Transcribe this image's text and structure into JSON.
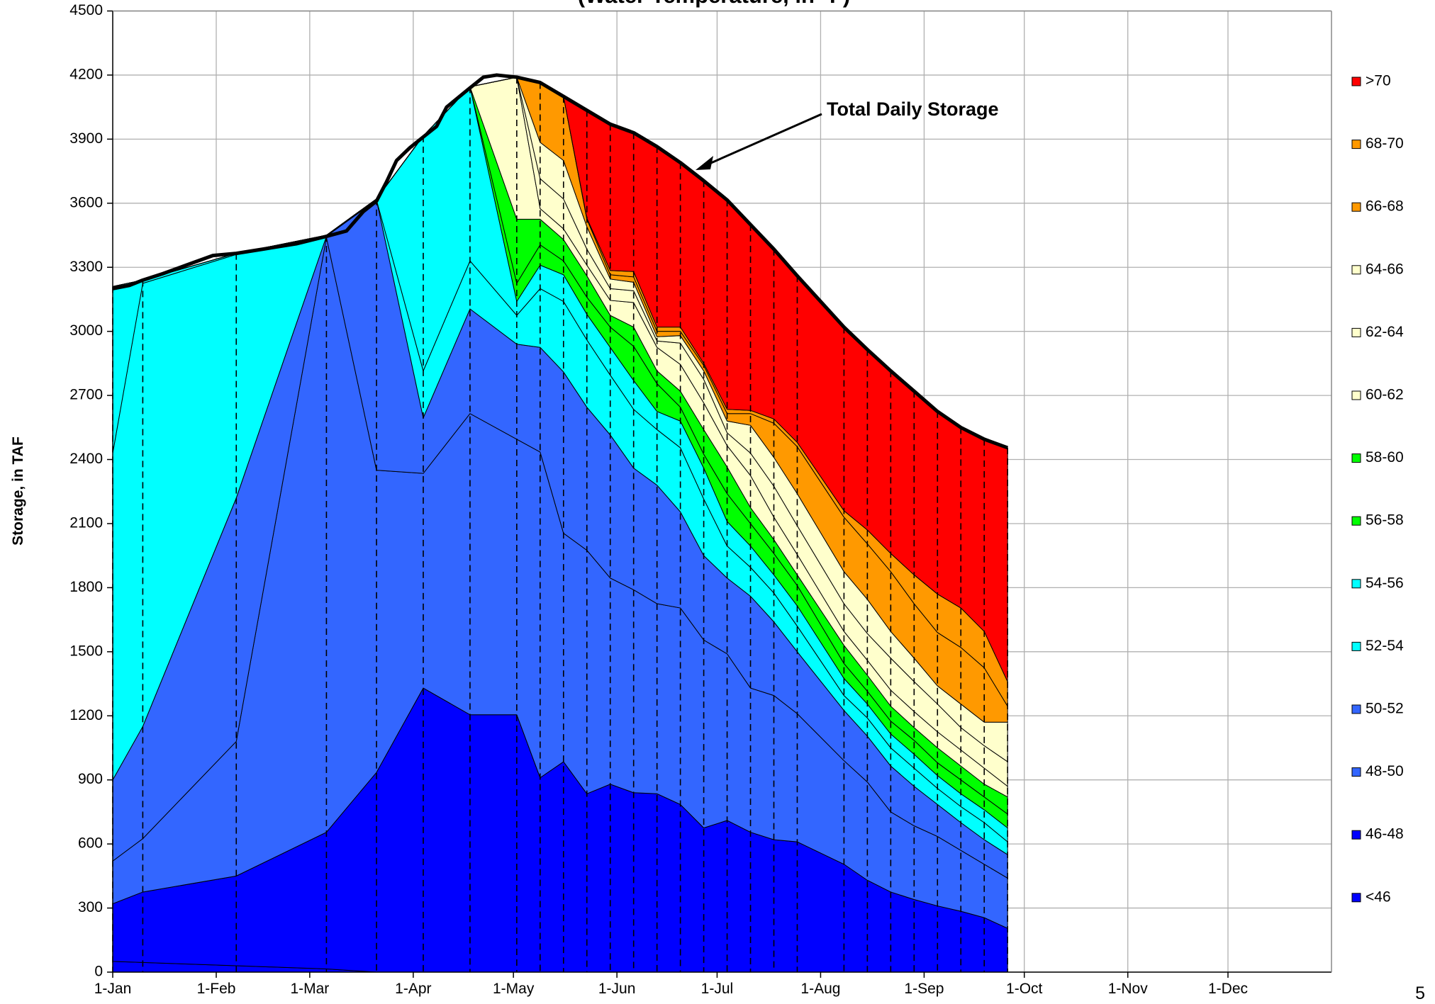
{
  "chart_data": {
    "type": "stacked_area",
    "title": "(Water Temperature, in °F)",
    "ylabel": "Storage, in TAF",
    "page_number": "5",
    "annotation": "Total Daily Storage",
    "xlim": [
      0,
      365
    ],
    "ylim": [
      0,
      4500
    ],
    "yticks": [
      0,
      300,
      600,
      900,
      1200,
      1500,
      1800,
      2100,
      2400,
      2700,
      3000,
      3300,
      3600,
      3900,
      4200,
      4500
    ],
    "xticks": [
      {
        "value": 0,
        "label": "1-Jan"
      },
      {
        "value": 31,
        "label": "1-Feb"
      },
      {
        "value": 59,
        "label": "1-Mar"
      },
      {
        "value": 90,
        "label": "1-Apr"
      },
      {
        "value": 120,
        "label": "1-May"
      },
      {
        "value": 151,
        "label": "1-Jun"
      },
      {
        "value": 181,
        "label": "1-Jul"
      },
      {
        "value": 212,
        "label": "1-Aug"
      },
      {
        "value": 243,
        "label": "1-Sep"
      },
      {
        "value": 273,
        "label": "1-Oct"
      },
      {
        "value": 304,
        "label": "1-Nov"
      },
      {
        "value": 334,
        "label": "1-Dec"
      }
    ],
    "grid": true,
    "legend": "right",
    "x": [
      0,
      9,
      37,
      64,
      79,
      93,
      107,
      121,
      128,
      135,
      142,
      149,
      156,
      163,
      170,
      177,
      184,
      191,
      198,
      205,
      219,
      226,
      233,
      240,
      247,
      254,
      261,
      268
    ],
    "series": [
      {
        "name": "<46",
        "color": "#0000ff",
        "values": [
          50,
          45,
          30,
          15,
          0,
          0,
          0,
          0,
          0,
          0,
          0,
          0,
          0,
          0,
          0,
          0,
          0,
          0,
          0,
          0,
          0,
          0,
          0,
          0,
          0,
          0,
          0,
          0
        ]
      },
      {
        "name": "46-48",
        "color": "#0000ff",
        "values": [
          270,
          330,
          420,
          640,
          935,
          1330,
          1205,
          1205,
          910,
          985,
          835,
          880,
          840,
          835,
          785,
          675,
          710,
          655,
          620,
          610,
          505,
          430,
          375,
          340,
          310,
          285,
          255,
          205
        ]
      },
      {
        "name": "48-50",
        "color": "#3366ff",
        "values": [
          200,
          250,
          630,
          2785,
          1415,
          1005,
          1410,
          1290,
          1525,
          1070,
          1140,
          965,
          950,
          890,
          920,
          880,
          780,
          675,
          675,
          600,
          485,
          460,
          375,
          345,
          325,
          285,
          250,
          235
        ]
      },
      {
        "name": "50-52",
        "color": "#3366ff",
        "values": [
          380,
          525,
          1140,
          5,
          1265,
          260,
          490,
          445,
          490,
          755,
          670,
          670,
          570,
          555,
          450,
          395,
          355,
          430,
          345,
          290,
          235,
          215,
          215,
          185,
          150,
          130,
          115,
          110
        ]
      },
      {
        "name": "52-54",
        "color": "#00ffff",
        "values": [
          1530,
          2075,
          1140,
          5,
          0,
          220,
          225,
          135,
          275,
          330,
          315,
          280,
          275,
          260,
          300,
          265,
          150,
          135,
          135,
          120,
          70,
          85,
          85,
          85,
          75,
          75,
          80,
          60
        ]
      },
      {
        "name": "54-56",
        "color": "#00ffff",
        "values": [
          780,
          15,
          5,
          0,
          5,
          1100,
          815,
          65,
          110,
          125,
          120,
          130,
          135,
          85,
          125,
          145,
          115,
          100,
          85,
          95,
          80,
          65,
          65,
          65,
          60,
          60,
          60,
          65
        ]
      },
      {
        "name": "56-58",
        "color": "#00ff00",
        "values": [
          0,
          0,
          0,
          0,
          0,
          0,
          0,
          85,
          95,
          65,
          80,
          95,
          160,
          130,
          65,
          65,
          130,
          105,
          100,
          95,
          70,
          60,
          60,
          65,
          60,
          65,
          60,
          65
        ]
      },
      {
        "name": "58-60",
        "color": "#00ff00",
        "values": [
          0,
          0,
          0,
          0,
          0,
          0,
          0,
          300,
          120,
          100,
          100,
          55,
          90,
          60,
          75,
          115,
          125,
          75,
          65,
          50,
          85,
          75,
          70,
          60,
          70,
          65,
          60,
          80
        ]
      },
      {
        "name": "60-62",
        "color": "#ffffcc",
        "values": [
          0,
          0,
          0,
          0,
          0,
          0,
          0,
          665,
          50,
          50,
          50,
          70,
          115,
          110,
          125,
          125,
          100,
          150,
          105,
          95,
          65,
          70,
          75,
          75,
          75,
          75,
          75,
          50
        ]
      },
      {
        "name": "62-64",
        "color": "#ffffcc",
        "values": [
          0,
          0,
          0,
          0,
          0,
          0,
          0,
          0,
          140,
          140,
          75,
          55,
          55,
          30,
          100,
          110,
          60,
          105,
          145,
          135,
          130,
          125,
          150,
          140,
          130,
          105,
          105,
          115
        ]
      },
      {
        "name": "64-66",
        "color": "#ffffcc",
        "values": [
          0,
          0,
          0,
          0,
          0,
          0,
          0,
          0,
          170,
          180,
          105,
          45,
          40,
          20,
          35,
          40,
          55,
          130,
          135,
          150,
          150,
          160,
          125,
          110,
          85,
          110,
          110,
          185
        ]
      },
      {
        "name": "66-68",
        "color": "#ff9900",
        "values": [
          0,
          0,
          0,
          0,
          0,
          0,
          0,
          0,
          280,
          300,
          35,
          20,
          25,
          25,
          20,
          25,
          35,
          55,
          160,
          220,
          255,
          260,
          280,
          255,
          250,
          265,
          255,
          75
        ]
      },
      {
        "name": "68-70",
        "color": "#ff9900",
        "values": [
          0,
          0,
          0,
          0,
          0,
          0,
          0,
          0,
          0,
          0,
          5,
          20,
          25,
          20,
          20,
          10,
          20,
          15,
          20,
          20,
          30,
          65,
          85,
          135,
          180,
          185,
          170,
          115
        ]
      },
      {
        "name": ">70",
        "color": "#ff0000",
        "values": [
          0,
          0,
          0,
          0,
          0,
          0,
          0,
          0,
          0,
          0,
          505,
          685,
          650,
          845,
          770,
          855,
          980,
          870,
          795,
          780,
          860,
          845,
          855,
          860,
          855,
          845,
          900,
          1095
        ]
      }
    ],
    "total": {
      "color": "#000000",
      "x": [
        0,
        5,
        9,
        15,
        22,
        30,
        37,
        45,
        55,
        64,
        70,
        75,
        79,
        82,
        85,
        89,
        93,
        97,
        100,
        107,
        111,
        115,
        121,
        128,
        135,
        142,
        149,
        156,
        163,
        170,
        177,
        184,
        191,
        198,
        205,
        219,
        226,
        233,
        240,
        247,
        254,
        261,
        268
      ],
      "values": [
        3200,
        3215,
        3240,
        3270,
        3310,
        3355,
        3365,
        3385,
        3410,
        3445,
        3470,
        3560,
        3610,
        3700,
        3800,
        3860,
        3910,
        3960,
        4050,
        4140,
        4190,
        4200,
        4190,
        4165,
        4100,
        4035,
        3970,
        3930,
        3865,
        3790,
        3705,
        3615,
        3500,
        3385,
        3260,
        3020,
        2915,
        2815,
        2720,
        2625,
        2550,
        2495,
        2455
      ]
    }
  }
}
